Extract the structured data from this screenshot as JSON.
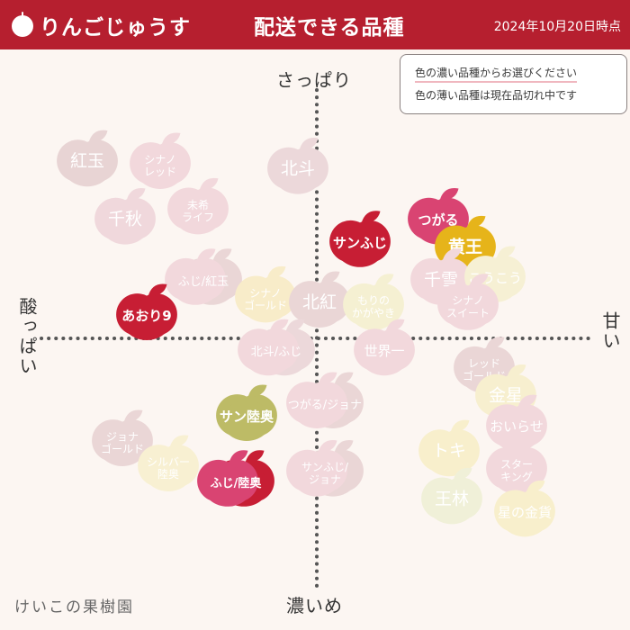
{
  "header": {
    "brand": "りんごじゅうす",
    "title": "配送できる品種",
    "date": "2024年10月20日時点",
    "logo_icon": "apple-icon",
    "bg_color": "#b61f2f"
  },
  "notice": {
    "line1": "色の濃い品種からお選びください",
    "line2": "色の薄い品種は現在品切れ中です"
  },
  "axes": {
    "top": "さっぱり",
    "bottom": "濃いめ",
    "left": "酸っぱい",
    "right": "甘い"
  },
  "credit": "けいこの果樹園",
  "chart_data": {
    "type": "scatter",
    "x_axis": {
      "negative": "酸っぱい",
      "positive": "甘い",
      "range": [
        -10,
        10
      ]
    },
    "y_axis": {
      "negative": "濃いめ",
      "positive": "さっぱり",
      "range": [
        -10,
        10
      ]
    },
    "grid": false,
    "points": [
      {
        "label": "紅玉",
        "x": -8.5,
        "y": 7.1,
        "color": "#e8d4d4",
        "available": false
      },
      {
        "label": "シナノ\nレッド",
        "x": -5.8,
        "y": 7.0,
        "color": "#f2d8dc",
        "available": false
      },
      {
        "label": "千秋",
        "x": -7.1,
        "y": 4.8,
        "color": "#f0d8dc",
        "available": false
      },
      {
        "label": "未希\nライフ",
        "x": -4.4,
        "y": 5.2,
        "color": "#f2d8dc",
        "available": false
      },
      {
        "label": "北斗",
        "x": -0.7,
        "y": 6.8,
        "color": "#ecd8da",
        "available": false
      },
      {
        "label": "ふじ/紅玉",
        "x": -4.3,
        "y": 2.4,
        "color": "#f2d8dc",
        "available": false,
        "double": true,
        "color2": "#ead6d6"
      },
      {
        "label": "シナノ\nゴールド",
        "x": -1.9,
        "y": 1.7,
        "color": "#f8ecc9",
        "available": false
      },
      {
        "label": "北紅",
        "x": 0.1,
        "y": 1.5,
        "color": "#ead6d6",
        "available": false
      },
      {
        "label": "もりの\nかがやき",
        "x": 2.1,
        "y": 1.4,
        "color": "#f5f0d2",
        "available": false
      },
      {
        "label": "サンふじ",
        "x": 1.6,
        "y": 3.9,
        "color": "#c71e34",
        "available": true
      },
      {
        "label": "つがる",
        "x": 4.5,
        "y": 4.8,
        "color": "#d94472",
        "available": true
      },
      {
        "label": "黄王",
        "x": 5.5,
        "y": 3.7,
        "color": "#e6b41a",
        "available": true
      },
      {
        "label": "千雪",
        "x": 4.6,
        "y": 2.4,
        "color": "#f2d8dc",
        "available": false
      },
      {
        "label": "こうこう",
        "x": 6.6,
        "y": 2.5,
        "color": "#f6f0d4",
        "available": false
      },
      {
        "label": "シナノ\nスイート",
        "x": 5.6,
        "y": 1.4,
        "color": "#f2d8dc",
        "available": false
      },
      {
        "label": "あおり9",
        "x": -6.3,
        "y": 1.0,
        "color": "#c71e34",
        "available": true
      },
      {
        "label": "北斗/ふじ",
        "x": -1.6,
        "y": -0.4,
        "color": "#f2d8dc",
        "available": false,
        "double": true,
        "color2": "#ecd8da"
      },
      {
        "label": "世界一",
        "x": 2.5,
        "y": -0.4,
        "color": "#f2d8dc",
        "available": false
      },
      {
        "label": "レッド\nゴールド",
        "x": 6.2,
        "y": -1.1,
        "color": "#ead6d6",
        "available": false
      },
      {
        "label": "金星",
        "x": 7.0,
        "y": -2.2,
        "color": "#f7efcf",
        "available": false
      },
      {
        "label": "おいらせ",
        "x": 7.4,
        "y": -3.4,
        "color": "#f2d8dc",
        "available": false
      },
      {
        "label": "スター\nキング",
        "x": 7.4,
        "y": -5.1,
        "color": "#f2d8dc",
        "available": false
      },
      {
        "label": "星の金貨",
        "x": 7.7,
        "y": -6.8,
        "color": "#f8efcc",
        "available": false
      },
      {
        "label": "トキ",
        "x": 4.9,
        "y": -4.4,
        "color": "#f8efcc",
        "available": false
      },
      {
        "label": "王林",
        "x": 5.0,
        "y": -6.3,
        "color": "#f0f0d8",
        "available": false
      },
      {
        "label": "つがる/ジョナ",
        "x": 0.2,
        "y": -2.5,
        "color": "#f2d8dc",
        "available": false,
        "double": true,
        "color2": "#ead6d6"
      },
      {
        "label": "サンふじ/\nジョナ",
        "x": 0.2,
        "y": -5.2,
        "color": "#f2d8dc",
        "available": false,
        "double": true,
        "color2": "#ead6d6"
      },
      {
        "label": "サン陸奥",
        "x": -2.6,
        "y": -3.0,
        "color": "#bdbb66",
        "available": true
      },
      {
        "label": "ふじ/陸奥",
        "x": -3.1,
        "y": -5.6,
        "color": "#d94472",
        "available": true,
        "double": true,
        "color2": "#c71e34"
      },
      {
        "label": "ジョナ\nゴールド",
        "x": -7.2,
        "y": -4.0,
        "color": "#ead6d6",
        "available": false
      },
      {
        "label": "シルバー\n陸奥",
        "x": -5.5,
        "y": -5.0,
        "color": "#f8f0d2",
        "available": false
      }
    ]
  }
}
